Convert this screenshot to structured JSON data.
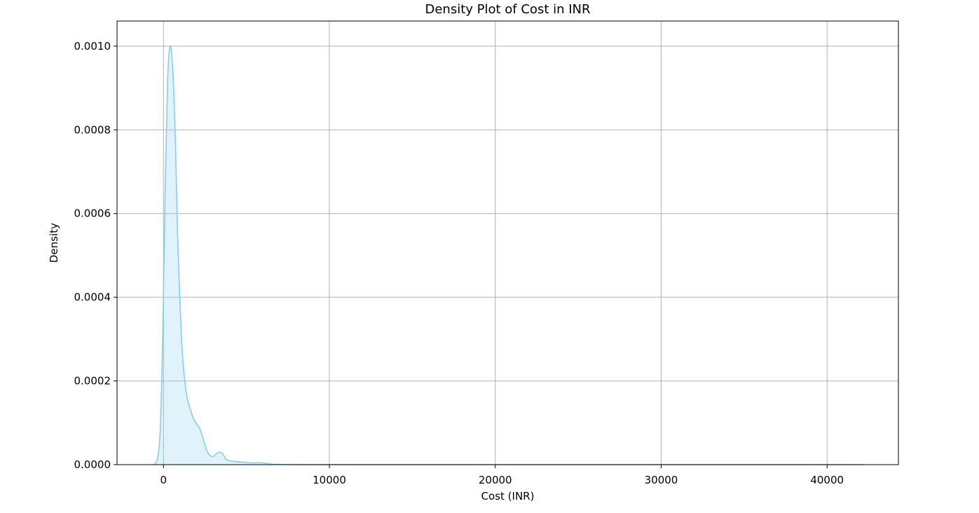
{
  "chart_data": {
    "type": "area",
    "title": "Density Plot of Cost in INR",
    "xlabel": "Cost (INR)",
    "ylabel": "Density",
    "xlim": [
      -2800,
      44300
    ],
    "ylim": [
      0,
      0.00106
    ],
    "xticks": [
      0,
      10000,
      20000,
      30000,
      40000
    ],
    "xtick_labels": [
      "0",
      "10000",
      "20000",
      "30000",
      "40000"
    ],
    "yticks": [
      0,
      0.0002,
      0.0004,
      0.0006,
      0.0008,
      0.001
    ],
    "ytick_labels": [
      "0.0000",
      "0.0002",
      "0.0004",
      "0.0006",
      "0.0008",
      "0.0010"
    ],
    "grid": true,
    "colors": {
      "line": "#87ceeb",
      "fill": "#87ceeb"
    },
    "series": [
      {
        "x": [
          -600,
          -400,
          -200,
          -50,
          100,
          250,
          400,
          550,
          700,
          850,
          1000,
          1150,
          1300,
          1450,
          1600,
          1800,
          2000,
          2200,
          2400,
          2600,
          2800,
          3000,
          3200,
          3400,
          3600,
          3800,
          4200,
          4800,
          5400,
          5800,
          6200,
          6600,
          7000,
          8000,
          10000,
          15000,
          20000,
          25000,
          30000,
          35000,
          40000,
          42200
        ],
        "y": [
          0,
          8e-06,
          8e-05,
          0.0003,
          0.00065,
          0.00092,
          0.001,
          0.00095,
          0.0008,
          0.00055,
          0.00038,
          0.00026,
          0.000195,
          0.000155,
          0.000135,
          0.00011,
          9.7e-05,
          8.5e-05,
          6e-05,
          3.5e-05,
          2.2e-05,
          2e-05,
          2.6e-05,
          3e-05,
          2.4e-05,
          1.2e-05,
          8e-06,
          6e-06,
          4e-06,
          5e-06,
          3e-06,
          1e-06,
          5e-07,
          2e-07,
          1e-07,
          1e-07,
          1e-07,
          1e-07,
          1e-07,
          1e-07,
          1e-07,
          0
        ]
      }
    ]
  }
}
